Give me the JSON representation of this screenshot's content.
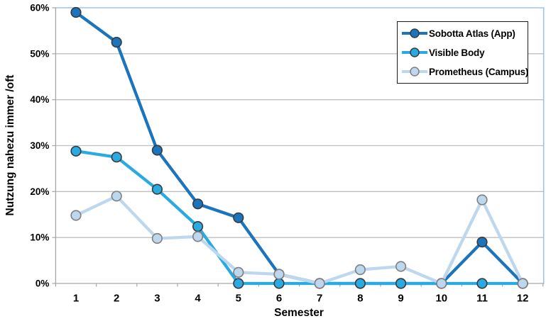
{
  "chart_data": {
    "type": "line",
    "title": "",
    "xlabel": "Semester",
    "ylabel": "Nutzung nahezu immer /oft",
    "x_categories": [
      "1",
      "2",
      "3",
      "4",
      "5",
      "6",
      "7",
      "8",
      "9",
      "10",
      "11",
      "12"
    ],
    "ylim": [
      0,
      60
    ],
    "ytick_step": 10,
    "ytick_labels": [
      "0%",
      "10%",
      "20%",
      "30%",
      "40%",
      "50%",
      "60%"
    ],
    "grid": "horizontal",
    "legend_position": "inside-top-right",
    "series": [
      {
        "name": "Sobotta Atlas (App)",
        "color": "#1B74BC",
        "marker_stroke": "#3A3A3A",
        "values": [
          59,
          52.5,
          29,
          17.3,
          14.3,
          2,
          0,
          0,
          0,
          0,
          9,
          0
        ]
      },
      {
        "name": "Visible Body",
        "color": "#29ABE2",
        "marker_stroke": "#3A3A3A",
        "values": [
          28.8,
          27.5,
          20.5,
          12.4,
          0,
          0,
          0,
          0,
          0,
          0,
          0,
          0
        ]
      },
      {
        "name": "Prometheus (Campus)",
        "color": "#BDD7EE",
        "marker_stroke": "#7F7F7F",
        "values": [
          14.8,
          19,
          9.8,
          10.2,
          2.4,
          2,
          0,
          3,
          3.7,
          0,
          18.2,
          0
        ]
      }
    ]
  },
  "colors": {
    "plot_border": "#9DC3E6",
    "gridline": "#BFBFBF",
    "axis_line": "#A6A6A6",
    "text": "#000000",
    "legend_border": "#1A1A1A",
    "legend_bg": "#FFFFFF"
  }
}
